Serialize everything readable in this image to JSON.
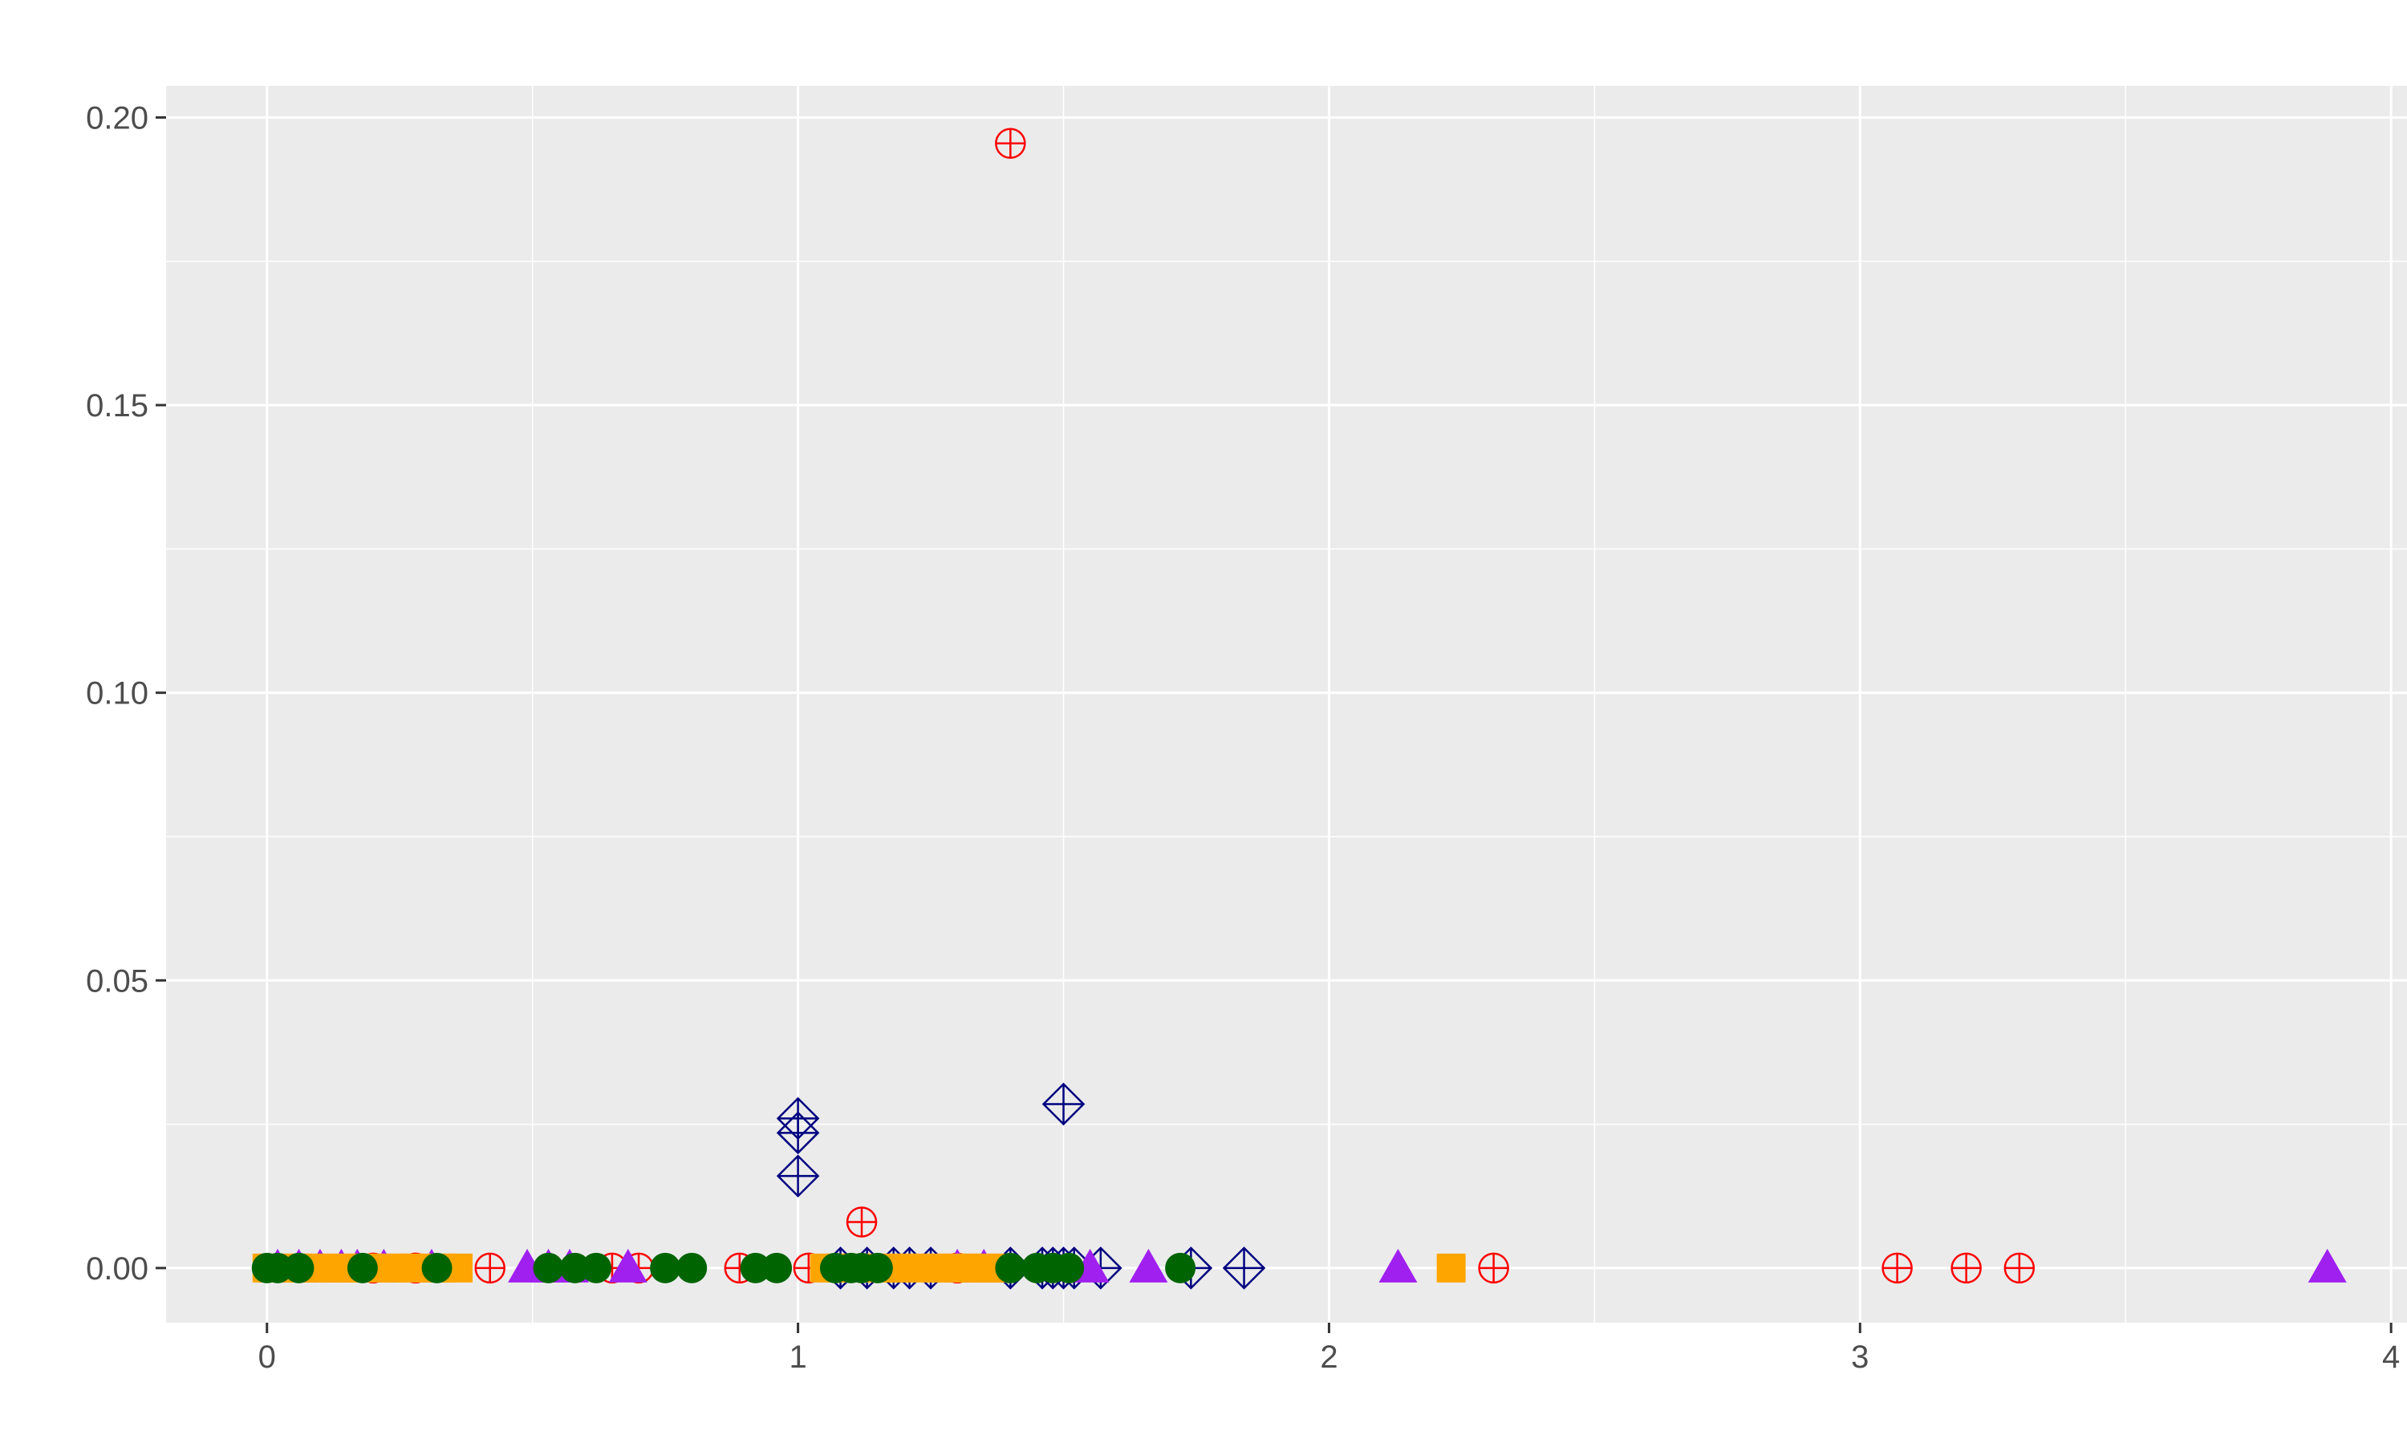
{
  "chart_data": {
    "type": "scatter",
    "title": "",
    "xlabel": "",
    "ylabel": "",
    "xlim": [
      -0.19,
      4.03
    ],
    "ylim": [
      -0.0095,
      0.2055
    ],
    "x_ticks": [
      0,
      1,
      2,
      3,
      4
    ],
    "x_tick_labels": [
      "0",
      "1",
      "2",
      "3",
      "4"
    ],
    "y_ticks": [
      0,
      0.05,
      0.1,
      0.15,
      0.2
    ],
    "y_tick_labels": [
      "0.00",
      "0.05",
      "0.10",
      "0.15",
      "0.20"
    ],
    "grid": true,
    "legend": "none",
    "colors": {
      "panel_background": "#EBEBEB",
      "grid": "#FFFFFF",
      "series_a": "#FF0000",
      "series_b": "#000080",
      "series_c": "#A020F0",
      "series_d": "#FFA500",
      "series_e": "#006400"
    },
    "series": [
      {
        "marker": "circle-plus",
        "color": "#FF0000",
        "points": [
          [
            1.4,
            0.1955
          ],
          [
            1.12,
            0.008
          ],
          [
            0.42,
            0
          ],
          [
            0.7,
            0
          ],
          [
            0.89,
            0
          ],
          [
            1.02,
            0
          ],
          [
            1.3,
            0
          ],
          [
            2.31,
            0
          ],
          [
            3.07,
            0
          ],
          [
            3.2,
            0
          ],
          [
            3.3,
            0
          ],
          [
            0.2,
            0
          ],
          [
            0.28,
            0
          ],
          [
            0.65,
            0
          ]
        ]
      },
      {
        "marker": "diamond-plus",
        "color": "#000080",
        "points": [
          [
            1.0,
            0.026
          ],
          [
            1.0,
            0.0235
          ],
          [
            1.0,
            0.016
          ],
          [
            1.5,
            0.0285
          ],
          [
            1.08,
            0
          ],
          [
            1.13,
            0
          ],
          [
            1.18,
            0
          ],
          [
            1.21,
            0
          ],
          [
            1.25,
            0
          ],
          [
            1.4,
            0
          ],
          [
            1.46,
            0
          ],
          [
            1.48,
            0
          ],
          [
            1.5,
            0
          ],
          [
            1.52,
            0
          ],
          [
            1.57,
            0
          ],
          [
            1.74,
            0
          ],
          [
            1.84,
            0
          ]
        ]
      },
      {
        "marker": "triangle",
        "color": "#A020F0",
        "points": [
          [
            0.02,
            0
          ],
          [
            0.06,
            0
          ],
          [
            0.1,
            0
          ],
          [
            0.14,
            0
          ],
          [
            0.17,
            0
          ],
          [
            0.22,
            0
          ],
          [
            0.31,
            0
          ],
          [
            0.49,
            0
          ],
          [
            0.53,
            0
          ],
          [
            0.57,
            0
          ],
          [
            0.68,
            0
          ],
          [
            1.3,
            0
          ],
          [
            1.35,
            0
          ],
          [
            1.55,
            0
          ],
          [
            1.66,
            0
          ],
          [
            2.13,
            0
          ],
          [
            3.88,
            0
          ]
        ]
      },
      {
        "marker": "square",
        "color": "#FFA500",
        "points": [
          [
            0.0,
            0
          ],
          [
            0.03,
            0
          ],
          [
            0.06,
            0
          ],
          [
            0.09,
            0
          ],
          [
            0.12,
            0
          ],
          [
            0.15,
            0
          ],
          [
            0.18,
            0
          ],
          [
            0.21,
            0
          ],
          [
            0.24,
            0
          ],
          [
            0.27,
            0
          ],
          [
            0.3,
            0
          ],
          [
            0.33,
            0
          ],
          [
            0.36,
            0
          ],
          [
            1.05,
            0
          ],
          [
            1.08,
            0
          ],
          [
            1.11,
            0
          ],
          [
            1.14,
            0
          ],
          [
            1.17,
            0
          ],
          [
            1.2,
            0
          ],
          [
            1.23,
            0
          ],
          [
            1.26,
            0
          ],
          [
            1.29,
            0
          ],
          [
            1.32,
            0
          ],
          [
            1.35,
            0
          ],
          [
            1.38,
            0
          ],
          [
            2.23,
            0
          ]
        ]
      },
      {
        "marker": "filled-circle",
        "color": "#006400",
        "points": [
          [
            0.0,
            0
          ],
          [
            0.02,
            0
          ],
          [
            0.06,
            0
          ],
          [
            0.18,
            0
          ],
          [
            0.32,
            0
          ],
          [
            0.53,
            0
          ],
          [
            0.58,
            0
          ],
          [
            0.62,
            0
          ],
          [
            0.75,
            0
          ],
          [
            0.8,
            0
          ],
          [
            0.92,
            0
          ],
          [
            0.96,
            0
          ],
          [
            1.07,
            0
          ],
          [
            1.1,
            0
          ],
          [
            1.12,
            0
          ],
          [
            1.15,
            0
          ],
          [
            1.4,
            0
          ],
          [
            1.45,
            0
          ],
          [
            1.48,
            0
          ],
          [
            1.51,
            0
          ],
          [
            1.72,
            0
          ]
        ]
      }
    ]
  }
}
